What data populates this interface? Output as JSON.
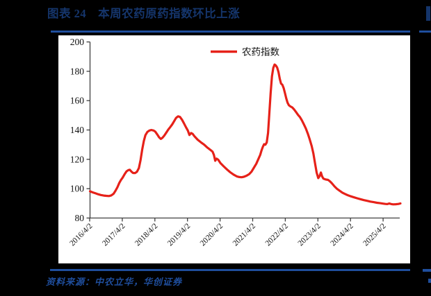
{
  "page": {
    "title": "图表 24　本周农药原药指数环比上涨",
    "source": "资料来源：中农立华，华创证券"
  },
  "colors": {
    "page_bg": "#000000",
    "panel_bg": "#ffffff",
    "title_navy": "#15356b",
    "rule_blue": "#1f4e9d",
    "source_blue": "#1f4e9d",
    "series_red": "#e62119",
    "axis_gray": "#3f3f3f",
    "tick_text": "#111111"
  },
  "chart_data": {
    "type": "line",
    "title": "",
    "legend": [
      {
        "label": "农药指数",
        "color": "#e62119"
      }
    ],
    "legend_position": "top-center",
    "xlabel": "",
    "ylabel": "",
    "ylim": [
      80,
      200
    ],
    "yticks": [
      80,
      100,
      120,
      140,
      160,
      180,
      200
    ],
    "grid": false,
    "xtick_labels": [
      "2016/4/2",
      "2017/4/2",
      "2018/4/2",
      "2019/4/2",
      "2020/4/2",
      "2021/4/2",
      "2022/4/2",
      "2023/4/2",
      "2024/4/2",
      "2025/4/2"
    ],
    "x_unit": "years_since_first_tick",
    "series": [
      {
        "name": "农药指数",
        "color": "#e62119",
        "points": [
          [
            0.0,
            98.2
          ],
          [
            0.08,
            97.5
          ],
          [
            0.17,
            96.8
          ],
          [
            0.25,
            96.2
          ],
          [
            0.33,
            95.7
          ],
          [
            0.42,
            95.3
          ],
          [
            0.5,
            95.1
          ],
          [
            0.58,
            95.0
          ],
          [
            0.65,
            95.4
          ],
          [
            0.72,
            96.5
          ],
          [
            0.78,
            98.5
          ],
          [
            0.84,
            101.0
          ],
          [
            0.9,
            104.0
          ],
          [
            0.95,
            106.0
          ],
          [
            1.0,
            107.5
          ],
          [
            1.06,
            109.8
          ],
          [
            1.12,
            111.8
          ],
          [
            1.18,
            112.7
          ],
          [
            1.22,
            112.9
          ],
          [
            1.27,
            111.6
          ],
          [
            1.32,
            110.7
          ],
          [
            1.38,
            110.6
          ],
          [
            1.44,
            111.5
          ],
          [
            1.5,
            114.0
          ],
          [
            1.55,
            119.5
          ],
          [
            1.6,
            126.5
          ],
          [
            1.65,
            132.5
          ],
          [
            1.7,
            136.5
          ],
          [
            1.76,
            138.7
          ],
          [
            1.82,
            139.6
          ],
          [
            1.88,
            140.0
          ],
          [
            1.95,
            139.6
          ],
          [
            2.0,
            138.9
          ],
          [
            2.06,
            137.0
          ],
          [
            2.12,
            135.0
          ],
          [
            2.17,
            133.9
          ],
          [
            2.22,
            134.6
          ],
          [
            2.28,
            136.2
          ],
          [
            2.34,
            138.2
          ],
          [
            2.4,
            140.3
          ],
          [
            2.46,
            142.0
          ],
          [
            2.52,
            143.8
          ],
          [
            2.58,
            146.0
          ],
          [
            2.64,
            148.2
          ],
          [
            2.7,
            149.3
          ],
          [
            2.76,
            148.9
          ],
          [
            2.82,
            147.0
          ],
          [
            2.88,
            144.6
          ],
          [
            2.94,
            142.0
          ],
          [
            3.0,
            139.6
          ],
          [
            3.05,
            136.6
          ],
          [
            3.1,
            137.9
          ],
          [
            3.15,
            137.3
          ],
          [
            3.2,
            135.8
          ],
          [
            3.3,
            133.4
          ],
          [
            3.4,
            131.6
          ],
          [
            3.5,
            130.0
          ],
          [
            3.6,
            128.0
          ],
          [
            3.7,
            126.3
          ],
          [
            3.76,
            125.2
          ],
          [
            3.8,
            123.0
          ],
          [
            3.84,
            119.0
          ],
          [
            3.88,
            120.5
          ],
          [
            3.93,
            119.8
          ],
          [
            4.0,
            117.4
          ],
          [
            4.1,
            115.2
          ],
          [
            4.2,
            113.1
          ],
          [
            4.3,
            111.2
          ],
          [
            4.4,
            109.6
          ],
          [
            4.5,
            108.4
          ],
          [
            4.58,
            107.9
          ],
          [
            4.65,
            107.8
          ],
          [
            4.72,
            108.1
          ],
          [
            4.8,
            108.8
          ],
          [
            4.88,
            109.9
          ],
          [
            4.95,
            111.5
          ],
          [
            5.02,
            114.0
          ],
          [
            5.1,
            117.0
          ],
          [
            5.16,
            120.0
          ],
          [
            5.22,
            123.0
          ],
          [
            5.26,
            126.0
          ],
          [
            5.3,
            128.5
          ],
          [
            5.34,
            130.3
          ],
          [
            5.38,
            130.0
          ],
          [
            5.42,
            131.5
          ],
          [
            5.46,
            138.0
          ],
          [
            5.5,
            151.0
          ],
          [
            5.54,
            165.0
          ],
          [
            5.58,
            176.5
          ],
          [
            5.62,
            182.3
          ],
          [
            5.66,
            184.6
          ],
          [
            5.7,
            184.0
          ],
          [
            5.74,
            182.5
          ],
          [
            5.78,
            179.5
          ],
          [
            5.82,
            174.8
          ],
          [
            5.86,
            171.6
          ],
          [
            5.9,
            170.8
          ],
          [
            5.94,
            168.5
          ],
          [
            5.98,
            165.0
          ],
          [
            6.02,
            161.5
          ],
          [
            6.06,
            158.5
          ],
          [
            6.1,
            156.8
          ],
          [
            6.15,
            156.0
          ],
          [
            6.2,
            155.4
          ],
          [
            6.26,
            154.0
          ],
          [
            6.32,
            152.2
          ],
          [
            6.38,
            150.3
          ],
          [
            6.44,
            148.8
          ],
          [
            6.5,
            146.5
          ],
          [
            6.56,
            143.8
          ],
          [
            6.62,
            141.0
          ],
          [
            6.68,
            137.5
          ],
          [
            6.74,
            133.5
          ],
          [
            6.8,
            129.0
          ],
          [
            6.85,
            124.0
          ],
          [
            6.9,
            117.5
          ],
          [
            6.95,
            111.0
          ],
          [
            7.0,
            107.2
          ],
          [
            7.04,
            108.5
          ],
          [
            7.08,
            111.0
          ],
          [
            7.12,
            108.3
          ],
          [
            7.16,
            106.8
          ],
          [
            7.22,
            106.3
          ],
          [
            7.3,
            106.0
          ],
          [
            7.36,
            105.0
          ],
          [
            7.42,
            103.6
          ],
          [
            7.5,
            101.5
          ],
          [
            7.58,
            99.8
          ],
          [
            7.66,
            98.5
          ],
          [
            7.74,
            97.3
          ],
          [
            7.82,
            96.4
          ],
          [
            7.9,
            95.6
          ],
          [
            8.0,
            94.8
          ],
          [
            8.1,
            94.1
          ],
          [
            8.2,
            93.4
          ],
          [
            8.3,
            92.8
          ],
          [
            8.4,
            92.2
          ],
          [
            8.5,
            91.7
          ],
          [
            8.6,
            91.2
          ],
          [
            8.7,
            90.8
          ],
          [
            8.8,
            90.4
          ],
          [
            8.9,
            90.1
          ],
          [
            9.0,
            89.8
          ],
          [
            9.06,
            89.6
          ],
          [
            9.12,
            89.5
          ],
          [
            9.18,
            89.9
          ],
          [
            9.24,
            89.5
          ],
          [
            9.3,
            89.3
          ],
          [
            9.38,
            89.4
          ],
          [
            9.46,
            89.6
          ],
          [
            9.52,
            89.9
          ]
        ]
      }
    ]
  }
}
